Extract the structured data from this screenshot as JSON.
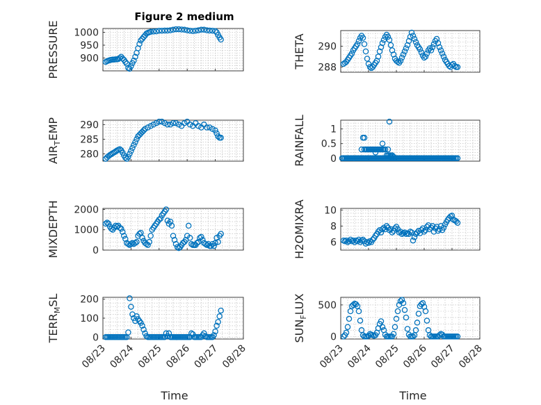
{
  "figure": {
    "title": "Figure 2 medium",
    "marker_color": "#0072bd",
    "grid": true,
    "x_tick_labels": [
      "08/23",
      "08/24",
      "08/25",
      "08/26",
      "08/27",
      "08/28"
    ],
    "x_axis_label": "Time"
  },
  "chart_data": [
    {
      "type": "scatter",
      "ylabel": "PRESSURE",
      "xlim": [
        "08/23",
        "08/28"
      ],
      "ylim": [
        850,
        1015
      ],
      "yticks": [
        900,
        950,
        1000
      ],
      "x_days": [
        0.1,
        0.15,
        0.2,
        0.25,
        0.3,
        0.35,
        0.4,
        0.45,
        0.5,
        0.55,
        0.6,
        0.65,
        0.7,
        0.75,
        0.8,
        0.85,
        0.9,
        0.95,
        1.0,
        1.05,
        1.1,
        1.15,
        1.2,
        1.25,
        1.3,
        1.35,
        1.4,
        1.45,
        1.5,
        1.55,
        1.6,
        1.65,
        1.7,
        1.8,
        1.9,
        2.0,
        2.1,
        2.2,
        2.3,
        2.4,
        2.5,
        2.6,
        2.7,
        2.8,
        2.9,
        3.0,
        3.1,
        3.2,
        3.3,
        3.4,
        3.5,
        3.6,
        3.7,
        3.8,
        3.9,
        4.0,
        4.05,
        4.1,
        4.15,
        4.2
      ],
      "values": [
        885,
        888,
        890,
        892,
        893,
        894,
        894,
        895,
        895,
        896,
        900,
        905,
        898,
        893,
        885,
        878,
        862,
        858,
        868,
        880,
        890,
        905,
        920,
        938,
        955,
        968,
        975,
        982,
        988,
        995,
        998,
        1000,
        1002,
        1003,
        1004,
        1006,
        1006,
        1007,
        1007,
        1008,
        1010,
        1012,
        1012,
        1011,
        1010,
        1008,
        1006,
        1005,
        1006,
        1008,
        1010,
        1010,
        1008,
        1007,
        1006,
        1005,
        1000,
        990,
        980,
        972
      ]
    },
    {
      "type": "scatter",
      "ylabel": "THETA",
      "xlim": [
        "08/23",
        "08/28"
      ],
      "ylim": [
        287.5,
        291.5
      ],
      "yticks": [
        288,
        290
      ],
      "x_days": [
        0.1,
        0.15,
        0.2,
        0.25,
        0.3,
        0.35,
        0.4,
        0.45,
        0.5,
        0.55,
        0.6,
        0.65,
        0.7,
        0.75,
        0.8,
        0.85,
        0.9,
        0.95,
        1.0,
        1.05,
        1.1,
        1.15,
        1.2,
        1.25,
        1.3,
        1.35,
        1.4,
        1.45,
        1.5,
        1.55,
        1.6,
        1.65,
        1.7,
        1.75,
        1.8,
        1.85,
        1.9,
        1.95,
        2.0,
        2.05,
        2.1,
        2.15,
        2.2,
        2.25,
        2.3,
        2.35,
        2.4,
        2.45,
        2.5,
        2.55,
        2.6,
        2.65,
        2.7,
        2.75,
        2.8,
        2.85,
        2.9,
        2.95,
        3.0,
        3.05,
        3.1,
        3.15,
        3.2,
        3.25,
        3.3,
        3.35,
        3.4,
        3.45,
        3.5,
        3.55,
        3.6,
        3.65,
        3.7,
        3.75,
        3.8,
        3.85,
        3.9,
        3.95,
        4.0,
        4.05,
        4.1,
        4.15,
        4.2
      ],
      "values": [
        288.3,
        288.4,
        288.5,
        288.7,
        288.9,
        289.1,
        289.3,
        289.6,
        289.8,
        290.0,
        290.2,
        290.5,
        290.8,
        291.0,
        290.8,
        290.2,
        289.5,
        288.8,
        288.3,
        288.0,
        287.9,
        288.0,
        288.2,
        288.4,
        288.6,
        289.0,
        289.5,
        289.9,
        290.3,
        290.6,
        290.9,
        291.1,
        290.9,
        290.6,
        290.1,
        289.6,
        289.2,
        288.8,
        288.6,
        288.5,
        288.4,
        288.6,
        288.9,
        289.2,
        289.5,
        289.8,
        290.1,
        290.5,
        290.9,
        291.3,
        291.0,
        290.7,
        290.4,
        290.1,
        289.9,
        289.7,
        289.4,
        289.1,
        288.9,
        289.0,
        289.3,
        289.6,
        289.8,
        289.6,
        289.9,
        290.2,
        290.5,
        290.7,
        290.3,
        289.9,
        289.6,
        289.3,
        289.0,
        288.7,
        288.5,
        288.3,
        288.1,
        288.0,
        288.2,
        288.3,
        288.1,
        288.0,
        288.0
      ]
    },
    {
      "type": "scatter",
      "ylabel": "AIR_TEMP",
      "xlim": [
        "08/23",
        "08/28"
      ],
      "ylim": [
        277.5,
        291.5
      ],
      "yticks": [
        280,
        285,
        290
      ],
      "x_days": [
        0.1,
        0.15,
        0.2,
        0.25,
        0.3,
        0.35,
        0.4,
        0.45,
        0.5,
        0.55,
        0.6,
        0.65,
        0.7,
        0.75,
        0.8,
        0.85,
        0.9,
        0.95,
        1.0,
        1.05,
        1.1,
        1.15,
        1.2,
        1.25,
        1.3,
        1.35,
        1.4,
        1.45,
        1.5,
        1.6,
        1.7,
        1.8,
        1.9,
        2.0,
        2.1,
        2.2,
        2.3,
        2.4,
        2.5,
        2.6,
        2.7,
        2.8,
        2.9,
        3.0,
        3.1,
        3.2,
        3.3,
        3.4,
        3.5,
        3.6,
        3.7,
        3.8,
        3.9,
        4.0,
        4.05,
        4.1,
        4.15,
        4.2
      ],
      "values": [
        278.3,
        278.8,
        279.2,
        279.6,
        279.9,
        280.2,
        280.5,
        280.8,
        281.1,
        281.4,
        281.6,
        281.2,
        280.4,
        279.5,
        278.7,
        278.3,
        279.0,
        280.0,
        281.0,
        282.0,
        283.0,
        284.0,
        285.0,
        286.0,
        286.5,
        287.0,
        287.5,
        288.0,
        288.5,
        289.0,
        289.5,
        290.0,
        290.5,
        291.0,
        291.0,
        290.5,
        290.0,
        290.0,
        290.5,
        290.5,
        290.0,
        289.5,
        290.5,
        291.0,
        290.0,
        289.5,
        290.5,
        289.5,
        289.0,
        290.0,
        289.0,
        289.0,
        288.5,
        288.0,
        287.0,
        286.0,
        285.5,
        285.5
      ]
    },
    {
      "type": "scatter",
      "ylabel": "RAINFALL",
      "xlim": [
        "08/23",
        "08/28"
      ],
      "ylim": [
        -0.1,
        1.3
      ],
      "yticks": [
        0,
        0.5,
        1
      ],
      "x_days": [
        0.05,
        0.1,
        0.15,
        0.2,
        0.25,
        0.3,
        0.35,
        0.4,
        0.45,
        0.5,
        0.55,
        0.6,
        0.65,
        0.7,
        0.75,
        0.8,
        0.85,
        0.9,
        0.95,
        1.0,
        1.05,
        1.1,
        1.15,
        1.2,
        1.25,
        1.3,
        1.35,
        1.4,
        1.45,
        1.5,
        1.55,
        1.6,
        1.65,
        1.7,
        1.75,
        1.8,
        1.85,
        1.9,
        1.95,
        2.0,
        2.05,
        2.1,
        2.15,
        2.2,
        2.25,
        2.3,
        2.35,
        2.4,
        2.45,
        2.5,
        2.55,
        2.6,
        2.65,
        2.7,
        2.75,
        2.8,
        2.85,
        2.9,
        2.95,
        3.0,
        3.05,
        3.1,
        3.15,
        3.2,
        3.25,
        3.3,
        3.35,
        3.4,
        3.45,
        3.5,
        3.55,
        3.6,
        3.65,
        3.7,
        3.75,
        3.8,
        3.85,
        3.9,
        3.95,
        4.0,
        4.05,
        4.1,
        4.15,
        4.2,
        0.75,
        0.85,
        0.8,
        0.85,
        0.9,
        0.95,
        1.0,
        1.05,
        1.1,
        1.15,
        1.2,
        1.25,
        1.3,
        1.35,
        1.4,
        1.45,
        1.5,
        1.55,
        1.6,
        1.65,
        1.7,
        1.75,
        1.8,
        1.85,
        1.9,
        1.75,
        1.25,
        1.5,
        1.7,
        1.8
      ],
      "values": [
        0,
        0,
        0,
        0,
        0,
        0,
        0,
        0,
        0,
        0,
        0,
        0,
        0,
        0,
        0,
        0,
        0,
        0,
        0,
        0,
        0,
        0,
        0,
        0,
        0,
        0,
        0,
        0,
        0,
        0,
        0,
        0,
        0,
        0,
        0,
        0,
        0,
        0,
        0,
        0,
        0,
        0,
        0,
        0,
        0,
        0,
        0,
        0,
        0,
        0,
        0,
        0,
        0,
        0,
        0,
        0,
        0,
        0,
        0,
        0,
        0,
        0,
        0,
        0,
        0,
        0,
        0,
        0,
        0,
        0,
        0,
        0,
        0,
        0,
        0,
        0,
        0,
        0,
        0,
        0,
        0,
        0,
        0,
        0,
        0.3,
        0.3,
        0.7,
        0.7,
        0.3,
        0.3,
        0.3,
        0.3,
        0.3,
        0.3,
        0.3,
        0.3,
        0.3,
        0.3,
        0.3,
        0.3,
        0.3,
        0.3,
        0.3,
        0.1,
        0.1,
        0.1,
        0.1,
        0.1,
        0.05,
        1.25,
        0.2,
        0.5,
        0.3,
        0.05
      ]
    },
    {
      "type": "scatter",
      "ylabel": "MIXDEPTH",
      "xlim": [
        "08/23",
        "08/28"
      ],
      "ylim": [
        0,
        2050
      ],
      "yticks": [
        0,
        1000,
        2000
      ],
      "x_days": [
        0.1,
        0.15,
        0.2,
        0.25,
        0.3,
        0.35,
        0.4,
        0.45,
        0.5,
        0.55,
        0.6,
        0.65,
        0.7,
        0.75,
        0.8,
        0.85,
        0.9,
        0.95,
        1.0,
        1.05,
        1.1,
        1.15,
        1.2,
        1.25,
        1.3,
        1.35,
        1.4,
        1.45,
        1.5,
        1.55,
        1.6,
        1.65,
        1.7,
        1.75,
        1.8,
        1.85,
        1.9,
        1.95,
        2.0,
        2.05,
        2.1,
        2.15,
        2.2,
        2.25,
        2.3,
        2.35,
        2.4,
        2.45,
        2.5,
        2.55,
        2.6,
        2.65,
        2.7,
        2.75,
        2.8,
        2.85,
        2.9,
        2.95,
        3.0,
        3.05,
        3.1,
        3.15,
        3.2,
        3.25,
        3.3,
        3.35,
        3.4,
        3.45,
        3.5,
        3.55,
        3.6,
        3.65,
        3.7,
        3.75,
        3.8,
        3.85,
        3.9,
        3.95,
        4.0,
        4.05,
        4.1,
        4.15,
        4.2
      ],
      "values": [
        1300,
        1350,
        1300,
        1150,
        1050,
        1000,
        1100,
        1200,
        1150,
        1200,
        1100,
        1050,
        900,
        700,
        550,
        350,
        300,
        250,
        300,
        350,
        300,
        350,
        400,
        700,
        800,
        850,
        600,
        450,
        350,
        300,
        250,
        400,
        700,
        1000,
        1100,
        1200,
        1300,
        1400,
        1500,
        1550,
        1700,
        1800,
        1900,
        2000,
        1450,
        1300,
        1400,
        1200,
        700,
        500,
        300,
        150,
        100,
        150,
        250,
        350,
        400,
        500,
        700,
        1200,
        600,
        300,
        250,
        250,
        250,
        350,
        400,
        600,
        650,
        500,
        350,
        300,
        250,
        300,
        200,
        200,
        300,
        200,
        350,
        600,
        400,
        700,
        800
      ]
    },
    {
      "type": "scatter",
      "ylabel": "H2OMIXRA",
      "xlim": [
        "08/23",
        "08/28"
      ],
      "ylim": [
        5,
        10.2
      ],
      "yticks": [
        6,
        8,
        10
      ],
      "x_days": [
        0.1,
        0.15,
        0.2,
        0.25,
        0.3,
        0.35,
        0.4,
        0.45,
        0.5,
        0.55,
        0.6,
        0.65,
        0.7,
        0.75,
        0.8,
        0.85,
        0.9,
        0.95,
        1.0,
        1.05,
        1.1,
        1.15,
        1.2,
        1.25,
        1.3,
        1.35,
        1.4,
        1.45,
        1.5,
        1.55,
        1.6,
        1.65,
        1.7,
        1.75,
        1.8,
        1.85,
        1.9,
        1.95,
        2.0,
        2.05,
        2.1,
        2.15,
        2.2,
        2.25,
        2.3,
        2.35,
        2.4,
        2.45,
        2.5,
        2.55,
        2.6,
        2.65,
        2.7,
        2.75,
        2.8,
        2.85,
        2.9,
        2.95,
        3.0,
        3.05,
        3.1,
        3.15,
        3.2,
        3.25,
        3.3,
        3.35,
        3.4,
        3.45,
        3.5,
        3.55,
        3.6,
        3.65,
        3.7,
        3.75,
        3.8,
        3.85,
        3.9,
        3.95,
        4.0,
        4.05,
        4.1,
        4.15,
        4.2
      ],
      "values": [
        6.2,
        6.1,
        6.2,
        6.0,
        6.1,
        6.3,
        6.1,
        6.2,
        6.0,
        6.2,
        6.1,
        6.3,
        6.0,
        6.2,
        6.3,
        6.1,
        5.8,
        6.0,
        5.9,
        6.1,
        6.0,
        6.3,
        6.5,
        6.8,
        7.0,
        7.3,
        7.5,
        7.2,
        7.6,
        7.8,
        7.6,
        8.0,
        7.8,
        7.5,
        7.6,
        7.2,
        7.4,
        7.7,
        7.9,
        7.6,
        7.2,
        7.3,
        7.0,
        7.1,
        7.2,
        7.0,
        7.1,
        7.0,
        7.3,
        7.2,
        6.2,
        6.6,
        7.0,
        7.2,
        7.4,
        7.1,
        7.5,
        7.7,
        7.3,
        7.5,
        7.9,
        8.1,
        7.6,
        7.8,
        8.0,
        7.3,
        7.7,
        7.9,
        7.4,
        7.6,
        8.0,
        7.5,
        7.8,
        8.2,
        8.5,
        8.8,
        9.0,
        9.2,
        9.3,
        8.8,
        8.7,
        8.6,
        8.4
      ]
    },
    {
      "type": "scatter",
      "ylabel": "TERR_MSL",
      "xlim": [
        "08/23",
        "08/28"
      ],
      "ylim": [
        -10,
        210
      ],
      "yticks": [
        0,
        100,
        200
      ],
      "x_days": [
        0.1,
        0.15,
        0.2,
        0.25,
        0.3,
        0.35,
        0.4,
        0.45,
        0.5,
        0.55,
        0.6,
        0.65,
        0.7,
        0.75,
        0.8,
        0.85,
        0.9,
        0.95,
        1.0,
        1.05,
        1.1,
        1.15,
        1.2,
        1.25,
        1.3,
        1.35,
        1.4,
        1.45,
        1.5,
        1.55,
        1.6,
        1.65,
        1.7,
        1.75,
        1.8,
        1.85,
        1.9,
        1.95,
        2.0,
        2.05,
        2.1,
        2.15,
        2.2,
        2.25,
        2.3,
        2.35,
        2.4,
        2.45,
        2.5,
        2.55,
        2.6,
        2.65,
        2.7,
        2.75,
        2.8,
        2.85,
        2.9,
        2.95,
        3.0,
        3.05,
        3.1,
        3.15,
        3.2,
        3.25,
        3.3,
        3.35,
        3.4,
        3.45,
        3.5,
        3.55,
        3.6,
        3.65,
        3.7,
        3.75,
        3.8,
        3.85,
        3.9,
        3.95,
        4.0,
        4.05,
        4.1,
        4.15,
        4.2
      ],
      "values": [
        0,
        0,
        0,
        0,
        0,
        0,
        0,
        0,
        0,
        0,
        0,
        0,
        0,
        0,
        0,
        0,
        25,
        205,
        160,
        120,
        100,
        85,
        110,
        95,
        85,
        75,
        60,
        40,
        20,
        5,
        0,
        0,
        0,
        0,
        0,
        0,
        0,
        0,
        0,
        0,
        0,
        0,
        0,
        20,
        5,
        20,
        0,
        0,
        0,
        0,
        0,
        0,
        0,
        0,
        0,
        0,
        0,
        0,
        0,
        0,
        0,
        20,
        15,
        0,
        0,
        0,
        0,
        0,
        0,
        10,
        20,
        5,
        0,
        0,
        0,
        0,
        0,
        10,
        30,
        60,
        80,
        110,
        140
      ]
    },
    {
      "type": "scatter",
      "ylabel": "SUN_FLUX",
      "xlim": [
        "08/23",
        "08/28"
      ],
      "ylim": [
        -40,
        620
      ],
      "yticks": [
        0,
        500
      ],
      "x_days": [
        0.1,
        0.15,
        0.2,
        0.25,
        0.3,
        0.35,
        0.4,
        0.45,
        0.5,
        0.55,
        0.6,
        0.65,
        0.7,
        0.75,
        0.8,
        0.85,
        0.9,
        0.95,
        1.0,
        1.05,
        1.1,
        1.15,
        1.2,
        1.25,
        1.3,
        1.35,
        1.4,
        1.45,
        1.5,
        1.55,
        1.6,
        1.65,
        1.7,
        1.75,
        1.8,
        1.85,
        1.9,
        1.95,
        2.0,
        2.05,
        2.1,
        2.15,
        2.2,
        2.25,
        2.3,
        2.35,
        2.4,
        2.45,
        2.5,
        2.55,
        2.6,
        2.65,
        2.7,
        2.75,
        2.8,
        2.85,
        2.9,
        2.95,
        3.0,
        3.05,
        3.1,
        3.15,
        3.2,
        3.25,
        3.3,
        3.35,
        3.4,
        3.45,
        3.5,
        3.55,
        3.6,
        3.65,
        3.7,
        3.75,
        3.8,
        3.85,
        3.9,
        3.95,
        4.0,
        4.05,
        4.1,
        4.15,
        4.2
      ],
      "values": [
        0,
        20,
        60,
        150,
        280,
        400,
        480,
        500,
        520,
        510,
        480,
        400,
        250,
        100,
        20,
        0,
        0,
        0,
        10,
        40,
        30,
        20,
        10,
        20,
        60,
        130,
        200,
        240,
        150,
        100,
        30,
        0,
        0,
        0,
        0,
        0,
        40,
        150,
        280,
        400,
        500,
        560,
        580,
        530,
        420,
        300,
        120,
        30,
        0,
        0,
        0,
        20,
        100,
        220,
        360,
        480,
        510,
        530,
        470,
        400,
        250,
        100,
        20,
        0,
        0,
        0,
        0,
        0,
        0,
        20,
        40,
        30,
        0,
        0,
        0,
        0,
        0,
        0,
        0,
        0,
        0,
        0,
        0
      ]
    }
  ]
}
